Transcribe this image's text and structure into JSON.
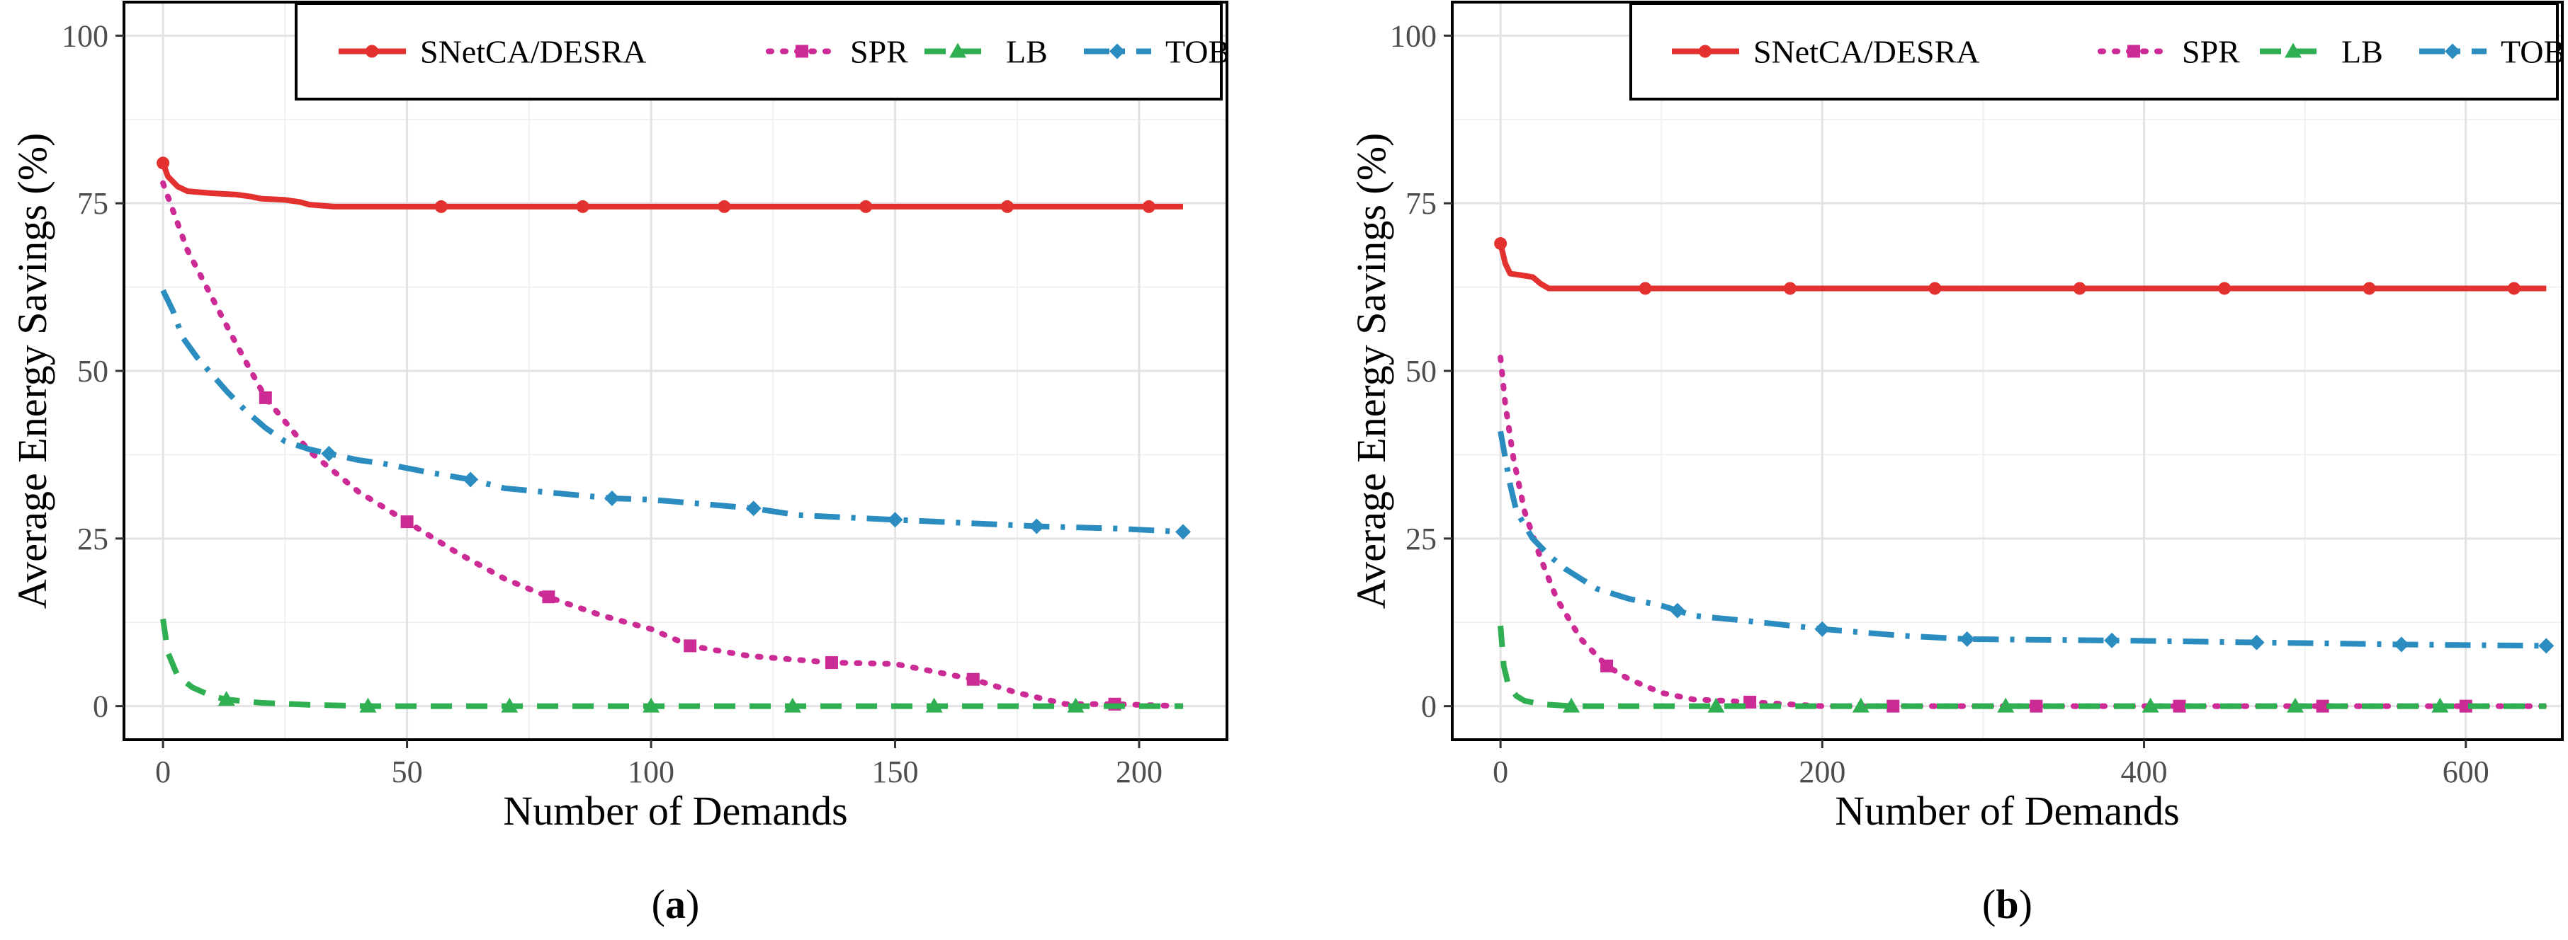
{
  "figure": {
    "description_labels": [
      "a",
      "b"
    ]
  },
  "chart_data": [
    {
      "type": "line",
      "panel_label": "a",
      "xlabel": "Number of Demands",
      "ylabel": "Average Energy Savings (%)",
      "xlim": [
        -8,
        218
      ],
      "ylim": [
        -5,
        105
      ],
      "xticks": [
        0,
        50,
        100,
        150,
        200
      ],
      "yticks": [
        0,
        25,
        50,
        75,
        100
      ],
      "grid": true,
      "legend_position": "top",
      "series": [
        {
          "name": "SNetCA/DESRA",
          "color": "#e2312e",
          "dash": "solid",
          "marker": "circle",
          "x": [
            0,
            1,
            3,
            5,
            10,
            15,
            18,
            20,
            25,
            28,
            30,
            35,
            57,
            86,
            115,
            144,
            173,
            202,
            209
          ],
          "y": [
            81,
            79,
            77.5,
            76.8,
            76.5,
            76.3,
            76,
            75.7,
            75.5,
            75.2,
            74.8,
            74.5,
            74.5,
            74.5,
            74.5,
            74.5,
            74.5,
            74.5,
            74.5
          ],
          "marker_x": [
            0,
            57,
            86,
            115,
            144,
            173,
            202
          ]
        },
        {
          "name": "SPR",
          "color": "#cc2a95",
          "dash": "dot",
          "marker": "square",
          "x": [
            0,
            5,
            10,
            15,
            21,
            30,
            40,
            50,
            60,
            70,
            80,
            90,
            100,
            108,
            120,
            137,
            150,
            166,
            175,
            185,
            195,
            209
          ],
          "y": [
            78,
            68,
            61,
            54,
            46,
            38,
            32,
            27.5,
            23,
            19,
            16,
            13.5,
            11.5,
            9,
            7.5,
            6.5,
            6.3,
            4,
            2,
            0.3,
            0.3,
            0
          ],
          "marker_x": [
            21,
            50,
            79,
            108,
            137,
            166,
            195
          ]
        },
        {
          "name": "LB",
          "color": "#2fae52",
          "dash": "dash",
          "marker": "triangle",
          "x": [
            0,
            1,
            3,
            6,
            10,
            13,
            20,
            30,
            42,
            60,
            80,
            100,
            150,
            209
          ],
          "y": [
            13,
            8,
            4.5,
            2.8,
            1.5,
            1,
            0.5,
            0.2,
            0,
            0,
            0,
            0,
            0,
            0
          ],
          "marker_x": [
            13,
            42,
            71,
            100,
            129,
            158,
            187
          ]
        },
        {
          "name": "TOB",
          "color": "#2b8cbf",
          "dash": "dashdot",
          "marker": "diamond",
          "x": [
            0,
            2,
            4,
            7,
            10,
            13,
            17,
            21,
            25,
            30,
            35,
            40,
            45,
            50,
            55,
            63,
            70,
            80,
            92,
            100,
            110,
            121,
            130,
            150,
            165,
            180,
            195,
            209
          ],
          "y": [
            62,
            59,
            55,
            52,
            49.5,
            47,
            44,
            41.5,
            39.5,
            38.3,
            37.5,
            36.7,
            36.2,
            35.5,
            34.8,
            33.8,
            32.5,
            31.8,
            31,
            30.8,
            30.2,
            29.5,
            28.5,
            27.8,
            27.3,
            26.8,
            26.5,
            26
          ],
          "marker_x": [
            34,
            63,
            92,
            121,
            150,
            179,
            209
          ]
        }
      ]
    },
    {
      "type": "line",
      "panel_label": "b",
      "xlabel": "Number of Demands",
      "ylabel": "Average Energy Savings (%)",
      "xlim": [
        -30,
        660
      ],
      "ylim": [
        -5,
        105
      ],
      "xticks": [
        0,
        200,
        400,
        600
      ],
      "yticks": [
        0,
        25,
        50,
        75,
        100
      ],
      "grid": true,
      "legend_position": "top",
      "series": [
        {
          "name": "SNetCA/DESRA",
          "color": "#e2312e",
          "dash": "solid",
          "marker": "circle",
          "x": [
            0,
            3,
            6,
            12,
            20,
            25,
            30,
            90,
            180,
            270,
            360,
            450,
            540,
            630,
            650
          ],
          "y": [
            69,
            66,
            64.5,
            64.3,
            64,
            63,
            62.3,
            62.3,
            62.3,
            62.3,
            62.3,
            62.3,
            62.3,
            62.3,
            62.3
          ],
          "marker_x": [
            0,
            90,
            180,
            270,
            360,
            450,
            540,
            630
          ]
        },
        {
          "name": "SPR",
          "color": "#cc2a95",
          "dash": "dot",
          "marker": "square",
          "x": [
            0,
            3,
            8,
            15,
            25,
            35,
            50,
            66,
            80,
            100,
            120,
            140,
            155,
            200,
            250,
            650
          ],
          "y": [
            52,
            45,
            37,
            29,
            22,
            16,
            10,
            6,
            4,
            2,
            1,
            0.8,
            0.6,
            0,
            0,
            0
          ],
          "marker_x": [
            66,
            155,
            244,
            333,
            422,
            511,
            600
          ]
        },
        {
          "name": "LB",
          "color": "#2fae52",
          "dash": "dash",
          "marker": "triangle",
          "x": [
            0,
            2,
            5,
            10,
            15,
            25,
            44,
            100,
            650
          ],
          "y": [
            12,
            6,
            3,
            1.5,
            0.8,
            0.3,
            0,
            0,
            0
          ],
          "marker_x": [
            44,
            134,
            224,
            314,
            404,
            494,
            584
          ]
        },
        {
          "name": "TOB",
          "color": "#2b8cbf",
          "dash": "dashdot",
          "marker": "diamond",
          "x": [
            0,
            3,
            6,
            10,
            15,
            20,
            30,
            40,
            50,
            60,
            80,
            100,
            120,
            150,
            200,
            250,
            290,
            380,
            470,
            560,
            650
          ],
          "y": [
            41,
            37,
            33,
            29,
            27,
            25,
            22.5,
            20.5,
            19,
            17.5,
            16,
            15,
            13.5,
            12.8,
            11.5,
            10.5,
            10,
            9.8,
            9.5,
            9.2,
            9
          ],
          "marker_x": [
            110,
            200,
            290,
            380,
            470,
            560,
            650
          ]
        }
      ]
    }
  ]
}
